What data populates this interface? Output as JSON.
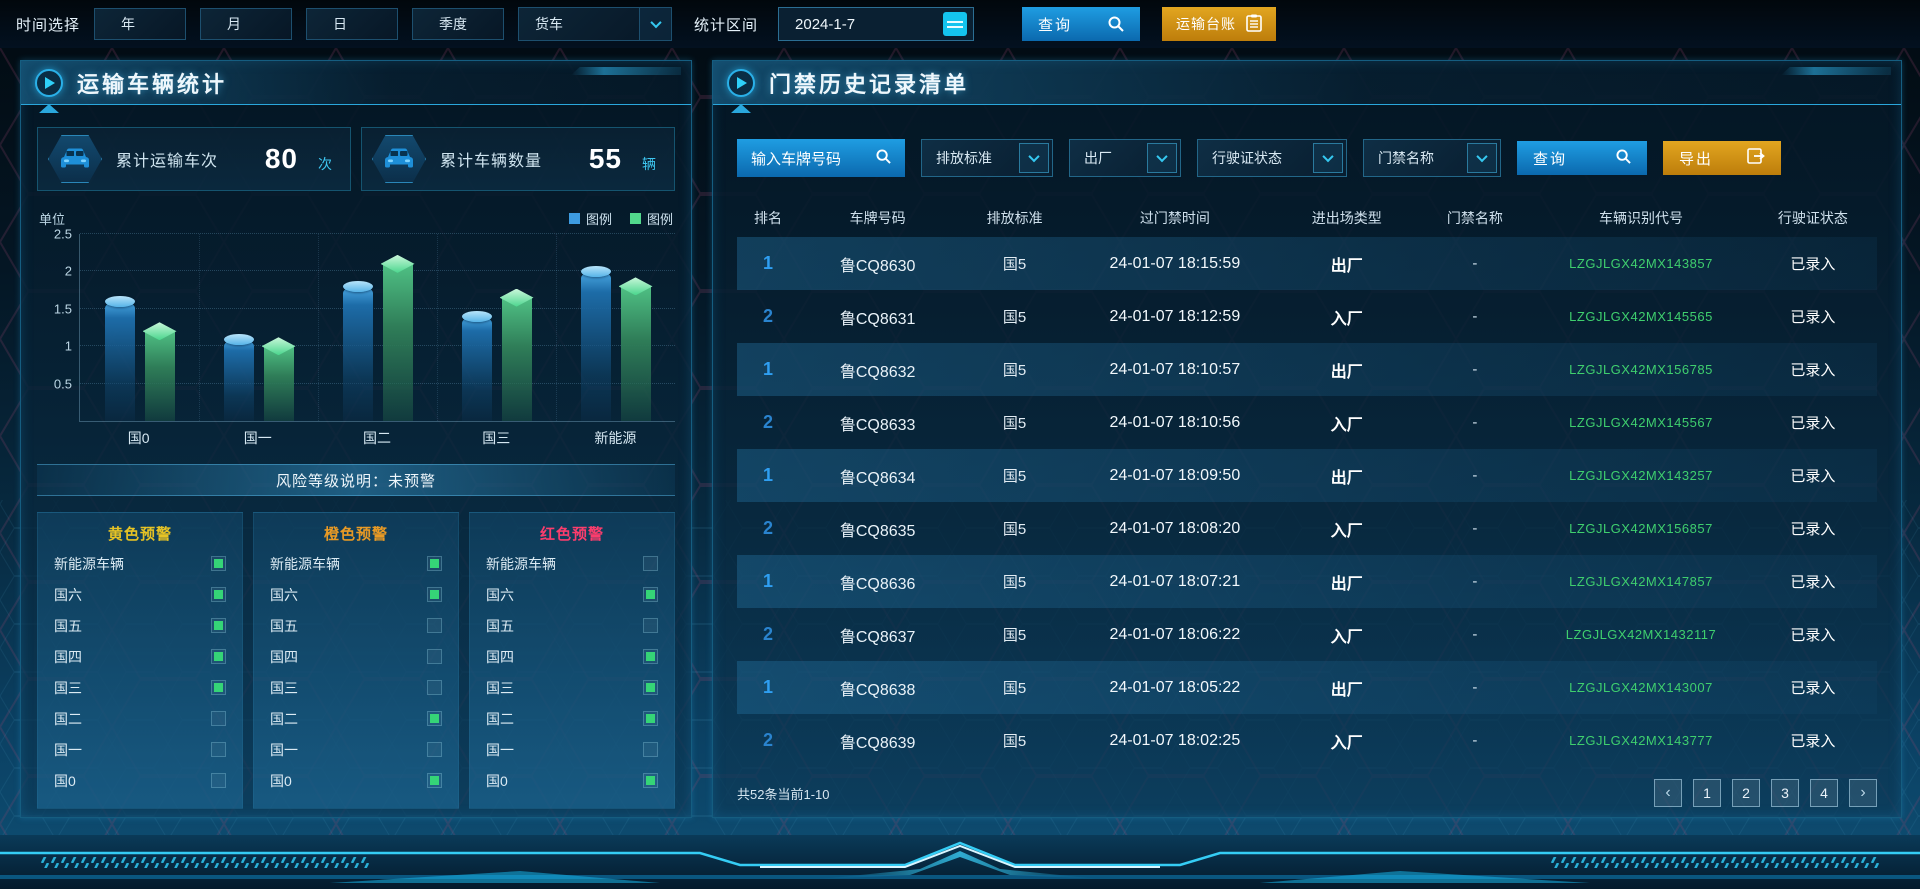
{
  "topbar": {
    "time_label": "时间选择",
    "buttons": [
      "年",
      "月",
      "日",
      "季度"
    ],
    "vehicle_select_value": "货车",
    "range_label": "统计区间",
    "date_value": "2024-1-7",
    "query_label": "查询",
    "ledger_label": "运输台账"
  },
  "left_panel": {
    "title": "运输车辆统计",
    "stats": [
      {
        "label": "累计运输车次",
        "value": "80",
        "unit": "次"
      },
      {
        "label": "累计车辆数量",
        "value": "55",
        "unit": "辆"
      }
    ],
    "risk_note": "风险等级说明：未预警",
    "warning_items": [
      "新能源车辆",
      "国六",
      "国五",
      "国四",
      "国三",
      "国二",
      "国一",
      "国0"
    ],
    "warnings": [
      {
        "title": "黄色预警",
        "color": "#e6c325",
        "checks": [
          true,
          true,
          true,
          true,
          true,
          false,
          false,
          false
        ]
      },
      {
        "title": "橙色预警",
        "color": "#e89a25",
        "checks": [
          true,
          true,
          false,
          false,
          false,
          true,
          false,
          true
        ]
      },
      {
        "title": "红色预警",
        "color": "#fb3d6d",
        "checks": [
          false,
          true,
          false,
          true,
          true,
          true,
          false,
          true
        ]
      }
    ]
  },
  "chart_data": {
    "type": "bar",
    "title": "",
    "unit_label": "单位",
    "categories": [
      "国0",
      "国一",
      "国二",
      "国三",
      "新能源"
    ],
    "series": [
      {
        "name": "图例",
        "color": "#3d9be0",
        "values": [
          1.6,
          1.1,
          1.8,
          1.4,
          2.0
        ]
      },
      {
        "name": "图例",
        "color": "#52d98c",
        "values": [
          1.2,
          1.0,
          2.1,
          1.65,
          1.8
        ]
      }
    ],
    "ylim": [
      0,
      2.5
    ],
    "yticks": [
      0.5,
      1,
      1.5,
      2,
      2.5
    ],
    "grid": true,
    "legend_position": "top-right"
  },
  "right_panel": {
    "title": "门禁历史记录清单",
    "filters": {
      "plate_placeholder": "输入车牌号码",
      "dropdowns": [
        "排放标准",
        "出厂",
        "行驶证状态",
        "门禁名称"
      ],
      "query_label": "查询",
      "export_label": "导出"
    },
    "table": {
      "columns": [
        "排名",
        "车牌号码",
        "排放标准",
        "过门禁时间",
        "进出场类型",
        "门禁名称",
        "车辆识别代号",
        "行驶证状态"
      ],
      "rows": [
        [
          "1",
          "鲁CQ8630",
          "国5",
          "24-01-07 18:15:59",
          "出厂",
          "-",
          "LZGJLGX42MX143857",
          "已录入"
        ],
        [
          "2",
          "鲁CQ8631",
          "国5",
          "24-01-07 18:12:59",
          "入厂",
          "-",
          "LZGJLGX42MX145565",
          "已录入"
        ],
        [
          "1",
          "鲁CQ8632",
          "国5",
          "24-01-07 18:10:57",
          "出厂",
          "-",
          "LZGJLGX42MX156785",
          "已录入"
        ],
        [
          "2",
          "鲁CQ8633",
          "国5",
          "24-01-07 18:10:56",
          "入厂",
          "-",
          "LZGJLGX42MX145567",
          "已录入"
        ],
        [
          "1",
          "鲁CQ8634",
          "国5",
          "24-01-07 18:09:50",
          "出厂",
          "-",
          "LZGJLGX42MX143257",
          "已录入"
        ],
        [
          "2",
          "鲁CQ8635",
          "国5",
          "24-01-07 18:08:20",
          "入厂",
          "-",
          "LZGJLGX42MX156857",
          "已录入"
        ],
        [
          "1",
          "鲁CQ8636",
          "国5",
          "24-01-07 18:07:21",
          "出厂",
          "-",
          "LZGJLGX42MX147857",
          "已录入"
        ],
        [
          "2",
          "鲁CQ8637",
          "国5",
          "24-01-07 18:06:22",
          "入厂",
          "-",
          "LZGJLGX42MX1432117",
          "已录入"
        ],
        [
          "1",
          "鲁CQ8638",
          "国5",
          "24-01-07 18:05:22",
          "出厂",
          "-",
          "LZGJLGX42MX143007",
          "已录入"
        ],
        [
          "2",
          "鲁CQ8639",
          "国5",
          "24-01-07 18:02:25",
          "入厂",
          "-",
          "LZGJLGX42MX143777",
          "已录入"
        ]
      ]
    },
    "pagination": {
      "summary": "共52条当前1-10",
      "prev": "‹",
      "next": "›",
      "pages": [
        "1",
        "2",
        "3",
        "4"
      ]
    }
  },
  "colors": {
    "accent_cyan": "#2fd0f8",
    "button_blue": "#1f9de2",
    "button_orange": "#e2a620",
    "vin_green": "#3fcf6e",
    "check_green": "#35d477"
  }
}
